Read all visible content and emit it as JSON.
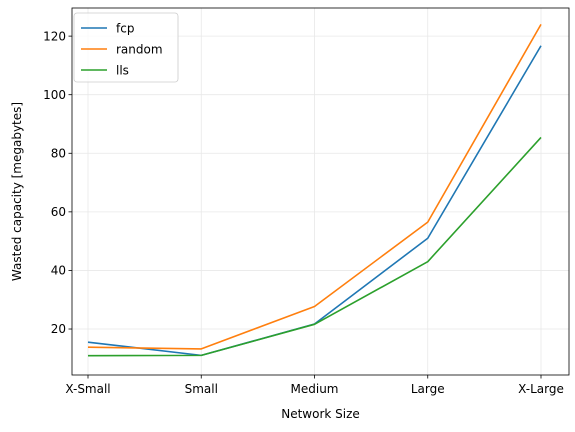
{
  "chart_data": {
    "type": "line",
    "categories": [
      "X-Small",
      "Small",
      "Medium",
      "Large",
      "X-Large"
    ],
    "series": [
      {
        "name": "fcp",
        "color": "#1f77b4",
        "values": [
          15.5,
          11.0,
          21.7,
          51.0,
          116.7
        ]
      },
      {
        "name": "random",
        "color": "#ff7f0e",
        "values": [
          13.8,
          13.2,
          27.7,
          56.5,
          124.0
        ]
      },
      {
        "name": "lls",
        "color": "#2ca02c",
        "values": [
          10.9,
          11.0,
          21.6,
          43.0,
          85.4
        ]
      }
    ],
    "title": "",
    "xlabel": "Network Size",
    "ylabel": "Wasted capacity [megabytes]",
    "ylim": [
      4.3,
      129.6
    ],
    "yticks": [
      20,
      40,
      60,
      80,
      100,
      120
    ],
    "grid": true,
    "legend": "top-left"
  }
}
